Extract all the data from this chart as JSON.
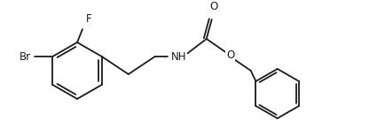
{
  "background_color": "#ffffff",
  "line_color": "#1a1a1a",
  "line_width": 1.3,
  "font_size": 8.5,
  "figsize": [
    4.34,
    1.54
  ],
  "dpi": 100,
  "xlim": [
    0,
    434
  ],
  "ylim": [
    0,
    154
  ]
}
